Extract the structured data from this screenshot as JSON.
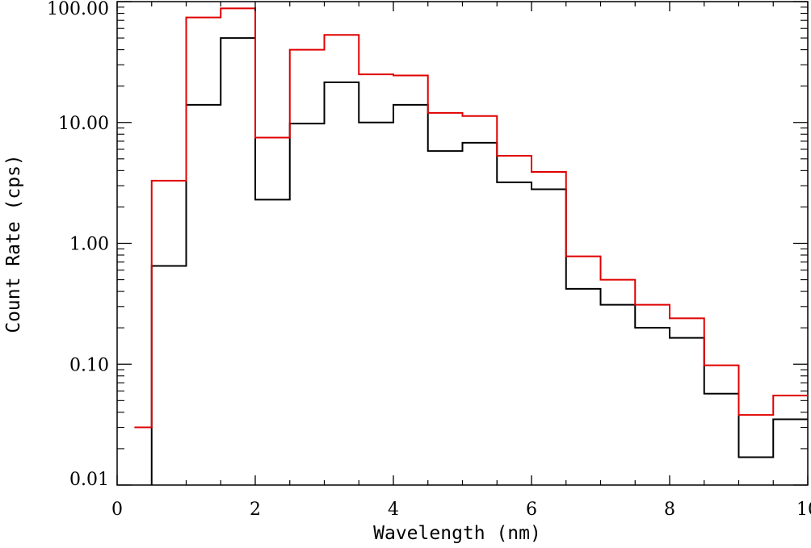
{
  "chart_data": {
    "type": "line",
    "style": "step-histogram",
    "title": "",
    "xlabel": "Wavelength (nm)",
    "ylabel": "Count Rate (cps)",
    "xlim": [
      0,
      10
    ],
    "ylim": [
      0.01,
      100
    ],
    "yscale": "log",
    "grid": false,
    "x_ticks": [
      "0",
      "2",
      "4",
      "6",
      "8",
      "10"
    ],
    "y_ticks": [
      "0.01",
      "0.10",
      "1.00",
      "10.00",
      "100.00"
    ],
    "bin_edges": [
      0.25,
      0.5,
      1.0,
      1.5,
      2.0,
      2.5,
      3.0,
      3.5,
      4.0,
      4.5,
      5.0,
      5.5,
      6.0,
      6.5,
      7.0,
      7.5,
      8.0,
      8.5,
      9.0,
      9.5,
      10.0
    ],
    "series": [
      {
        "color": "#000000",
        "values": [
          null,
          0.65,
          14,
          50,
          2.3,
          9.8,
          21.5,
          10,
          14,
          5.8,
          6.8,
          3.2,
          2.8,
          0.42,
          0.31,
          0.2,
          0.165,
          0.057,
          0.017,
          0.035
        ]
      },
      {
        "color": "#e00000",
        "values": [
          0.03,
          3.3,
          74,
          88,
          7.5,
          40,
          53,
          25,
          24.5,
          12,
          11.3,
          5.3,
          3.9,
          0.78,
          0.5,
          0.31,
          0.24,
          0.098,
          0.038,
          0.055
        ]
      }
    ]
  }
}
